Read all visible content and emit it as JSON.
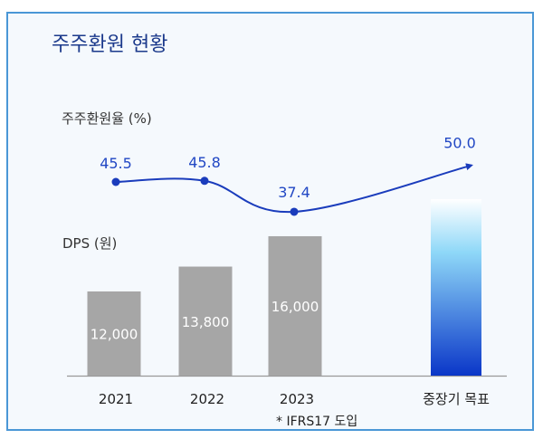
{
  "chart_data": {
    "type": "bar",
    "title": "주주환원 현황",
    "categories": [
      "2021",
      "2022",
      "2023",
      "중장기 목표"
    ],
    "category_note": "* IFRS17 도입",
    "bar_series": {
      "name": "DPS (원)",
      "values": [
        12000,
        13800,
        16000,
        null
      ],
      "labels": [
        "12,000",
        "13,800",
        "16,000",
        ""
      ]
    },
    "line_series": {
      "name": "주주환원율 (%)",
      "values": [
        45.5,
        45.8,
        37.4,
        50.0
      ],
      "labels": [
        "45.5",
        "45.8",
        "37.4",
        "50.0"
      ]
    },
    "legend": "none",
    "grid": false,
    "colors": {
      "bar": "#a6a6a6",
      "target_bar_top": "#ffffff",
      "target_bar_mid": "#8fd8f8",
      "target_bar_bottom": "#0a36c8",
      "line": "#1a3cbc",
      "line_label": "#2147c4",
      "title": "#1c3a8c",
      "border": "#4a97d6"
    }
  }
}
